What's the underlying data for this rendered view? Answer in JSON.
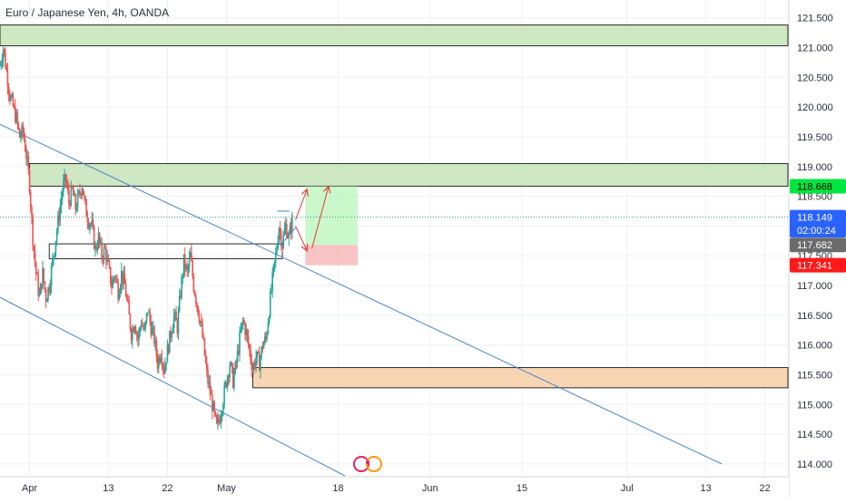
{
  "header": {
    "title": "Euro / Japanese Yen, 4h, OANDA"
  },
  "chart_data": {
    "type": "candlestick",
    "symbol": "Euro / Japanese Yen",
    "interval": "4h",
    "source": "OANDA",
    "ylim": [
      113.8,
      121.8
    ],
    "price_ticks": [
      "121.500",
      "121.000",
      "120.500",
      "120.000",
      "119.500",
      "119.000",
      "118.500",
      "118.000",
      "117.500",
      "117.000",
      "116.500",
      "116.000",
      "115.500",
      "115.000",
      "114.500",
      "114.000"
    ],
    "date_ticks": [
      {
        "label": "Apr",
        "day": 0
      },
      {
        "label": "13",
        "day": 12
      },
      {
        "label": "22",
        "day": 21
      },
      {
        "label": "May",
        "day": 30
      },
      {
        "label": "18",
        "day": 47
      },
      {
        "label": "Jun",
        "day": 61
      },
      {
        "label": "15",
        "day": 75
      },
      {
        "label": "Jul",
        "day": 91
      },
      {
        "label": "13",
        "day": 103
      },
      {
        "label": "22",
        "day": 112
      }
    ],
    "xlim_days": [
      -4.5,
      115.5
    ],
    "price_path": [
      [
        -4.5,
        120.7
      ],
      [
        -4,
        121.0
      ],
      [
        -3.5,
        120.6
      ],
      [
        -3,
        120.2
      ],
      [
        -2.5,
        120.0
      ],
      [
        -2,
        119.8
      ],
      [
        -1.5,
        119.5
      ],
      [
        -1,
        119.6
      ],
      [
        -0.5,
        119.2
      ],
      [
        0,
        118.7
      ],
      [
        0.5,
        117.8
      ],
      [
        1,
        117.2
      ],
      [
        1.5,
        116.8
      ],
      [
        2,
        117.2
      ],
      [
        2.5,
        116.8
      ],
      [
        3,
        117.0
      ],
      [
        3.5,
        117.4
      ],
      [
        4,
        117.8
      ],
      [
        4.5,
        118.2
      ],
      [
        5,
        118.6
      ],
      [
        5.5,
        118.8
      ],
      [
        6,
        118.4
      ],
      [
        6.5,
        118.6
      ],
      [
        7,
        118.3
      ],
      [
        7.5,
        118.5
      ],
      [
        8,
        118.7
      ],
      [
        8.5,
        118.3
      ],
      [
        9,
        118.1
      ],
      [
        9.5,
        118.0
      ],
      [
        10,
        117.6
      ],
      [
        10.5,
        117.8
      ],
      [
        11,
        117.5
      ],
      [
        11.5,
        117.6
      ],
      [
        12,
        117.3
      ],
      [
        12.5,
        117.0
      ],
      [
        13,
        117.2
      ],
      [
        13.5,
        116.9
      ],
      [
        14,
        117.2
      ],
      [
        14.5,
        117.0
      ],
      [
        15,
        116.6
      ],
      [
        15.5,
        116.2
      ],
      [
        16,
        116.4
      ],
      [
        16.5,
        116.1
      ],
      [
        17,
        116.4
      ],
      [
        17.5,
        116.2
      ],
      [
        18,
        116.6
      ],
      [
        18.5,
        116.3
      ],
      [
        19,
        116.1
      ],
      [
        19.5,
        115.7
      ],
      [
        20,
        115.9
      ],
      [
        20.5,
        115.6
      ],
      [
        21,
        115.9
      ],
      [
        21.5,
        116.2
      ],
      [
        22,
        116.5
      ],
      [
        22.5,
        116.3
      ],
      [
        23,
        116.9
      ],
      [
        23.5,
        117.4
      ],
      [
        24,
        117.2
      ],
      [
        24.5,
        117.5
      ],
      [
        25,
        117.0
      ],
      [
        25.5,
        116.7
      ],
      [
        26,
        116.4
      ],
      [
        26.5,
        116.0
      ],
      [
        27,
        115.5
      ],
      [
        27.5,
        115.2
      ],
      [
        28,
        114.9
      ],
      [
        28.5,
        114.6
      ],
      [
        29,
        114.8
      ],
      [
        29.5,
        115.1
      ],
      [
        30,
        115.4
      ],
      [
        30.5,
        115.7
      ],
      [
        31,
        115.4
      ],
      [
        31.5,
        115.7
      ],
      [
        32,
        116.1
      ],
      [
        32.5,
        116.4
      ],
      [
        33,
        116.2
      ],
      [
        33.5,
        115.9
      ],
      [
        34,
        115.6
      ],
      [
        34.5,
        115.8
      ],
      [
        35,
        115.7
      ],
      [
        35.5,
        116.0
      ],
      [
        36,
        116.1
      ],
      [
        36.5,
        116.6
      ],
      [
        37,
        117.1
      ],
      [
        37.5,
        117.5
      ],
      [
        38,
        118.0
      ],
      [
        38.5,
        117.7
      ],
      [
        39,
        118.0
      ],
      [
        39.5,
        117.8
      ],
      [
        40,
        118.1
      ]
    ],
    "zones": [
      {
        "name": "supply-zone-top",
        "kind": "resistance",
        "price_top": 121.38,
        "price_bottom": 121.03,
        "day_start": -4.5,
        "day_end": 115.5,
        "fill": "#c5e4b8",
        "stroke": "#2a2a2a"
      },
      {
        "name": "supply-zone-middle",
        "kind": "resistance",
        "price_top": 119.05,
        "price_bottom": 118.67,
        "day_start": 0,
        "day_end": 115.5,
        "fill": "#c5e4b8",
        "stroke": "#2a2a2a"
      },
      {
        "name": "demand-zone-bottom",
        "kind": "support",
        "price_top": 115.62,
        "price_bottom": 115.28,
        "day_start": 34,
        "day_end": 115.5,
        "fill": "#f8cfa6",
        "stroke": "#2a2a2a"
      },
      {
        "name": "consolidation-box",
        "kind": "outline",
        "price_top": 117.7,
        "price_bottom": 117.45,
        "day_start": 3,
        "day_end": 38.5,
        "fill": "none",
        "stroke": "#2a2a2a"
      }
    ],
    "position": {
      "entry": 117.682,
      "target": 118.668,
      "stop": 117.341,
      "day_start": 42,
      "day_end": 50
    },
    "price_labels": [
      {
        "value": "118.668",
        "price": 118.668,
        "bg": "#00e640",
        "fg": "#000000"
      },
      {
        "value": "118.149",
        "price": 118.149,
        "bg": "#2962ff",
        "fg": "#ffffff"
      },
      {
        "value": "02:00:24",
        "price": 117.93,
        "bg": "#2962ff",
        "fg": "#ffffff"
      },
      {
        "value": "117.682",
        "price": 117.682,
        "bg": "#6b6b6b",
        "fg": "#ffffff"
      },
      {
        "value": "117.341",
        "price": 117.341,
        "bg": "#ff1a1a",
        "fg": "#ffffff"
      }
    ],
    "last_price": 118.149,
    "colors": {
      "up": "#26a69a",
      "down": "#ef5350",
      "trendline": "#4a86c8",
      "arrow": "#e53935",
      "last_price_line": "#2a9d8f"
    }
  }
}
